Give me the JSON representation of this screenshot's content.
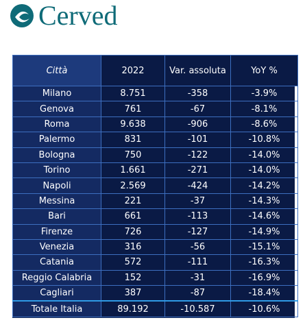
{
  "brand": "Cerved",
  "table": {
    "header": [
      "Città",
      "2022",
      "Var. assoluta",
      "YoY %"
    ],
    "rows": [
      [
        "Milano",
        "8.751",
        "-358",
        "-3.9%"
      ],
      [
        "Genova",
        "761",
        "-67",
        "-8.1%"
      ],
      [
        "Roma",
        "9.638",
        "-906",
        "-8.6%"
      ],
      [
        "Palermo",
        "831",
        "-101",
        "-10.8%"
      ],
      [
        "Bologna",
        "750",
        "-122",
        "-14.0%"
      ],
      [
        "Torino",
        "1.661",
        "-271",
        "-14.0%"
      ],
      [
        "Napoli",
        "2.569",
        "-424",
        "-14.2%"
      ],
      [
        "Messina",
        "221",
        "-37",
        "-14.3%"
      ],
      [
        "Bari",
        "661",
        "-113",
        "-14.6%"
      ],
      [
        "Firenze",
        "726",
        "-127",
        "-14.9%"
      ],
      [
        "Venezia",
        "316",
        "-56",
        "-15.1%"
      ],
      [
        "Catania",
        "572",
        "-111",
        "-16.3%"
      ],
      [
        "Reggio Calabria",
        "152",
        "-31",
        "-16.9%"
      ],
      [
        "Cagliari",
        "387",
        "-87",
        "-18.4%"
      ]
    ],
    "total": [
      "Totale Italia",
      "89.192",
      "-10.587",
      "-10.6%"
    ]
  }
}
